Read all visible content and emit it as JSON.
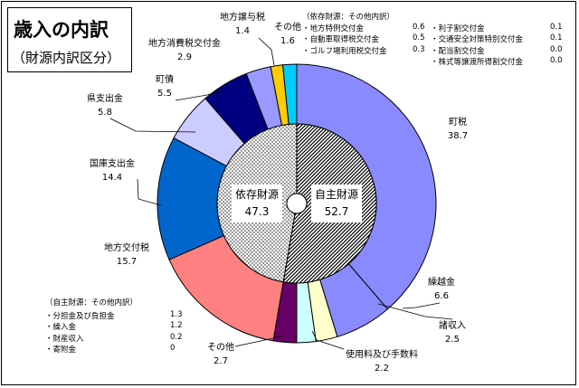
{
  "title": "歳入の内訳",
  "subtitle": "（財源内訳区分）",
  "chart_data": {
    "type": "donut",
    "center": {
      "left_label": "依存財源",
      "left_value": "47.3",
      "right_label": "自主財源",
      "right_value": "52.7",
      "inner": [
        {
          "name": "自主財源",
          "value": 52.7,
          "color": "#ffffff",
          "pattern": "hatch"
        },
        {
          "name": "依存財源",
          "value": 47.3,
          "color": "#ffffff",
          "pattern": "dots"
        }
      ]
    },
    "segments": [
      {
        "name": "町税",
        "value": 38.7,
        "color": "#8a8aff"
      },
      {
        "name": "繰越金",
        "value": 6.6,
        "color": "#8a8aff"
      },
      {
        "name": "諸収入",
        "value": 2.5,
        "color": "#ffffcc"
      },
      {
        "name": "使用料及び手数料",
        "value": 2.2,
        "color": "#ccffff"
      },
      {
        "name": "その他",
        "value": 2.7,
        "color": "#660066"
      },
      {
        "name": "地方交付税",
        "value": 15.7,
        "color": "#ff8080"
      },
      {
        "name": "国庫支出金",
        "value": 14.4,
        "color": "#0066cc"
      },
      {
        "name": "県支出金",
        "value": 5.8,
        "color": "#ccccff"
      },
      {
        "name": "町債",
        "value": 5.5,
        "color": "#000080"
      },
      {
        "name": "地方消費税交付金",
        "value": 2.9,
        "color": "#9999ff"
      },
      {
        "name": "地方譲与税",
        "value": 1.4,
        "color": "#ffcc00"
      },
      {
        "name": "その他",
        "value": 1.6,
        "color": "#00ccff"
      }
    ]
  },
  "value_labels": [
    "38.7",
    "6.6",
    "2.5",
    "2.2",
    "2.7",
    "15.7",
    "14.4",
    "5.8",
    "5.5",
    "2.9",
    "1.4",
    "1.6"
  ],
  "notes": {
    "dependent_title": "（依存財源：その他内訳）",
    "dependent_col1": [
      {
        "label": "・地方特例交付金",
        "value": "0.6"
      },
      {
        "label": "・自動車取得税交付金",
        "value": "0.5"
      },
      {
        "label": "・ゴルフ場利用税交付金",
        "value": "0.3"
      }
    ],
    "dependent_col2": [
      {
        "label": "・利子割交付金",
        "value": "0.1"
      },
      {
        "label": "・交通安全対策特別交付金",
        "value": "0.1"
      },
      {
        "label": "・配当割交付金",
        "value": "0.0"
      },
      {
        "label": "・株式等譲渡所得割交付金",
        "value": "0.0"
      }
    ],
    "own_title": "（自主財源：その他内訳）",
    "own_items": [
      {
        "label": "・分担金及び負担金",
        "value": "1.3"
      },
      {
        "label": "・繰入金",
        "value": "1.2"
      },
      {
        "label": "・財産収入",
        "value": "0.2"
      },
      {
        "label": "・寄附金",
        "value": "0"
      }
    ]
  }
}
